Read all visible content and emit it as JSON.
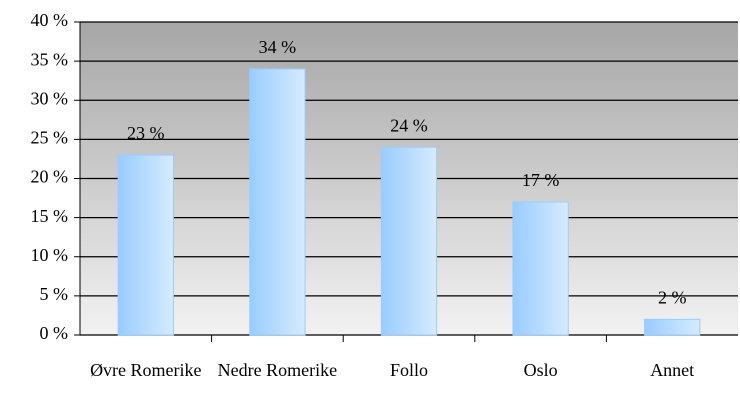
{
  "chart_data": {
    "type": "bar",
    "categories": [
      "Øvre Romerike",
      "Nedre Romerike",
      "Follo",
      "Oslo",
      "Annet"
    ],
    "values": [
      23,
      34,
      24,
      17,
      2
    ],
    "value_labels": [
      "23 %",
      "34 %",
      "24 %",
      "17 %",
      "2 %"
    ],
    "color": "#99ccff",
    "ylim": [
      0,
      40
    ],
    "yticks": [
      {
        "value": 0,
        "label": "0 %"
      },
      {
        "value": 5,
        "label": "5 %"
      },
      {
        "value": 10,
        "label": "10 %"
      },
      {
        "value": 15,
        "label": "15 %"
      },
      {
        "value": 20,
        "label": "20 %"
      },
      {
        "value": 25,
        "label": "25 %"
      },
      {
        "value": 30,
        "label": "30 %"
      },
      {
        "value": 35,
        "label": "35 %"
      },
      {
        "value": 40,
        "label": "40 %"
      }
    ],
    "grid": true
  }
}
